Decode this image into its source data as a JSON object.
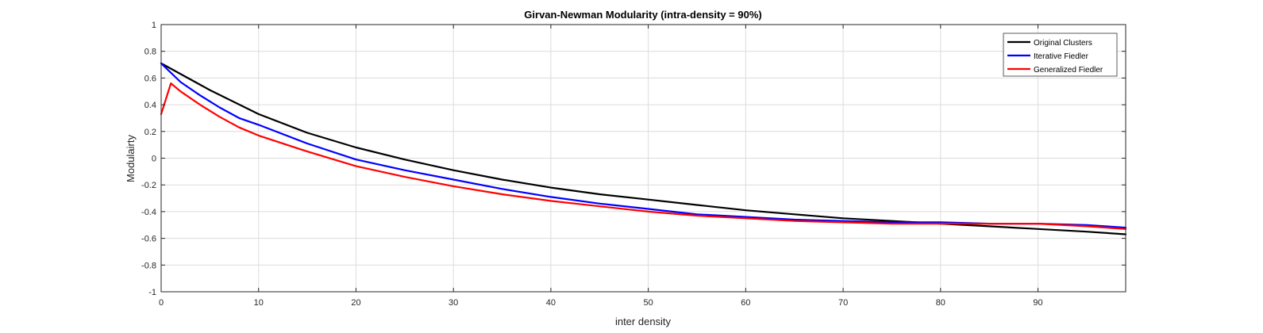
{
  "chart_data": {
    "type": "line",
    "title": "Girvan-Newman Modularity (intra-density = 90%)",
    "xlabel": "inter density",
    "ylabel": "Modulairty",
    "xlim": [
      0,
      99
    ],
    "ylim": [
      -1,
      1
    ],
    "xticks": [
      0,
      10,
      20,
      30,
      40,
      50,
      60,
      70,
      80,
      90
    ],
    "yticks": [
      -1,
      -0.8,
      -0.6,
      -0.4,
      -0.2,
      0,
      0.2,
      0.4,
      0.6,
      0.8,
      1
    ],
    "xtick_labels": [
      "0",
      "10",
      "20",
      "30",
      "40",
      "50",
      "60",
      "70",
      "80",
      "90"
    ],
    "ytick_labels": [
      "-1",
      "-0.8",
      "-0.6",
      "-0.4",
      "-0.2",
      "0",
      "0.2",
      "0.4",
      "0.6",
      "0.8",
      "1"
    ],
    "grid": true,
    "legend_position": "top-right",
    "series": [
      {
        "name": "Original Clusters",
        "color": "#000000",
        "x": [
          0,
          5,
          10,
          15,
          20,
          25,
          30,
          35,
          40,
          45,
          50,
          55,
          60,
          65,
          70,
          75,
          80,
          85,
          90,
          95,
          99
        ],
        "y": [
          0.71,
          0.51,
          0.33,
          0.19,
          0.08,
          -0.01,
          -0.09,
          -0.16,
          -0.22,
          -0.27,
          -0.31,
          -0.35,
          -0.39,
          -0.42,
          -0.45,
          -0.47,
          -0.49,
          -0.51,
          -0.53,
          -0.55,
          -0.57
        ]
      },
      {
        "name": "Iterative Fiedler",
        "color": "#0000ff",
        "x": [
          0,
          2,
          4,
          6,
          8,
          10,
          15,
          20,
          25,
          30,
          35,
          40,
          45,
          50,
          55,
          60,
          65,
          70,
          75,
          80,
          85,
          90,
          95,
          99
        ],
        "y": [
          0.71,
          0.57,
          0.47,
          0.38,
          0.3,
          0.25,
          0.11,
          -0.01,
          -0.09,
          -0.16,
          -0.23,
          -0.29,
          -0.34,
          -0.38,
          -0.42,
          -0.44,
          -0.46,
          -0.47,
          -0.48,
          -0.48,
          -0.49,
          -0.49,
          -0.5,
          -0.52
        ]
      },
      {
        "name": "Generalized Fiedler",
        "color": "#ff0000",
        "x": [
          0,
          1,
          2,
          4,
          6,
          8,
          10,
          15,
          20,
          25,
          30,
          35,
          40,
          45,
          50,
          55,
          60,
          65,
          70,
          75,
          80,
          85,
          90,
          95,
          99
        ],
        "y": [
          0.33,
          0.56,
          0.5,
          0.4,
          0.31,
          0.23,
          0.17,
          0.05,
          -0.06,
          -0.14,
          -0.21,
          -0.27,
          -0.32,
          -0.36,
          -0.4,
          -0.43,
          -0.45,
          -0.47,
          -0.48,
          -0.49,
          -0.49,
          -0.49,
          -0.49,
          -0.51,
          -0.53
        ]
      }
    ]
  }
}
